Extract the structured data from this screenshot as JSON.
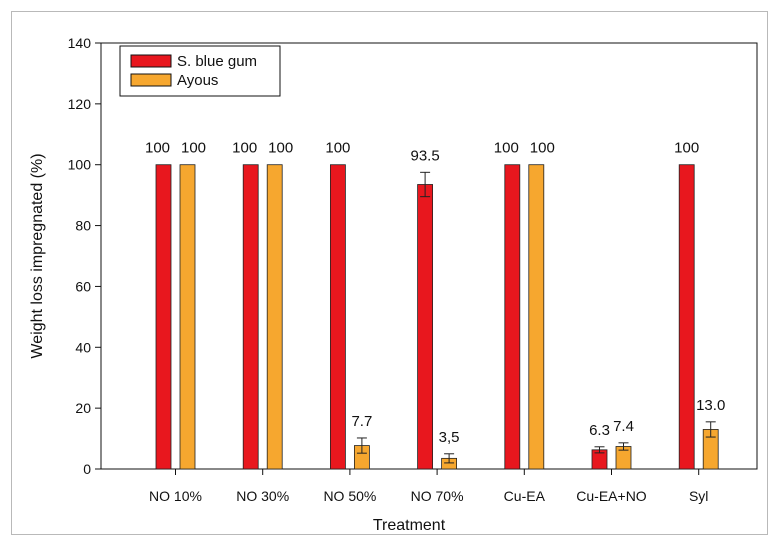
{
  "chart_data": {
    "type": "bar",
    "title": "",
    "xlabel": "Treatment",
    "ylabel": "Weight loss impregnated (%)",
    "ylim": [
      0,
      140
    ],
    "yticks": [
      "0",
      "20",
      "40",
      "60",
      "80",
      "100",
      "120",
      "140"
    ],
    "categories": [
      "NO 10%",
      "NO 30%",
      "NO 50%",
      "NO 70%",
      "Cu-EA",
      "Cu-EA+NO",
      "Syl"
    ],
    "series": [
      {
        "name": "S. blue gum",
        "color": "#e8171e",
        "values": [
          100,
          100,
          100,
          93.5,
          100,
          6.3,
          100
        ],
        "errors": [
          0,
          0,
          0,
          4,
          0,
          1,
          0
        ],
        "labels": [
          "100",
          "100",
          "100",
          "93.5",
          "100",
          "6.3",
          "100"
        ]
      },
      {
        "name": "Ayous",
        "color": "#f6a72f",
        "values": [
          100,
          100,
          7.7,
          3.5,
          100,
          7.4,
          13.0
        ],
        "errors": [
          0,
          0,
          2.5,
          1.5,
          0,
          1.2,
          2.5
        ],
        "labels": [
          "100",
          "100",
          "7.7",
          "3,5",
          "100",
          "7.4",
          "13.0"
        ]
      }
    ],
    "legend": "top-left",
    "grid": false
  }
}
